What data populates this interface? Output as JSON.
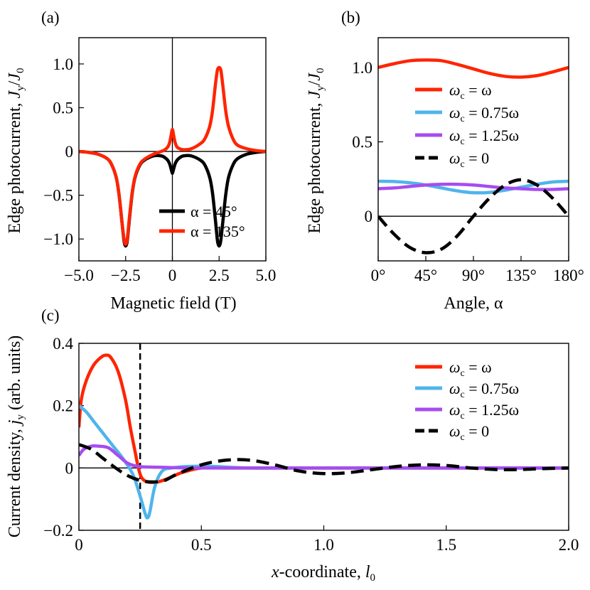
{
  "chart_data": [
    {
      "panel_label": "(a)",
      "type": "line",
      "xlabel": "Magnetic field (T)",
      "ylabel": "Edge photocurrent, Jᵧ/J₀",
      "xlim": [
        -5,
        5
      ],
      "ylim": [
        -1.25,
        1.3
      ],
      "x_ticks": [
        -5,
        -2.5,
        0,
        2.5,
        5
      ],
      "x_tick_labels": [
        "−5.0",
        "−2.5",
        "0",
        "2.5",
        "5.0"
      ],
      "y_ticks": [
        1,
        0.5,
        0,
        -0.5,
        -1
      ],
      "y_tick_labels": [
        "1.0",
        "0.5",
        "0",
        "−0.5",
        "−1.0"
      ],
      "legend": "bottom-right",
      "series": [
        {
          "name": "α = 45°",
          "color": "#000000",
          "dashed": false,
          "x": [
            -5,
            -4.5,
            -4,
            -3.5,
            -3.25,
            -3,
            -2.85,
            -2.7,
            -2.6,
            -2.55,
            -2.5,
            -2.45,
            -2.4,
            -2.3,
            -2.15,
            -2,
            -1.75,
            -1.5,
            -1,
            -0.6,
            -0.4,
            -0.25,
            -0.15,
            -0.08,
            -0.03,
            0,
            0.03,
            0.08,
            0.15,
            0.25,
            0.4,
            0.6,
            1,
            1.5,
            1.75,
            2,
            2.15,
            2.3,
            2.4,
            2.45,
            2.5,
            2.55,
            2.6,
            2.7,
            2.85,
            3,
            3.25,
            3.5,
            4,
            4.5,
            5
          ],
          "y": [
            0,
            -0.01,
            -0.03,
            -0.08,
            -0.15,
            -0.3,
            -0.5,
            -0.8,
            -1.0,
            -1.06,
            -1.08,
            -1.06,
            -1.0,
            -0.78,
            -0.48,
            -0.3,
            -0.16,
            -0.1,
            -0.05,
            -0.05,
            -0.07,
            -0.1,
            -0.14,
            -0.19,
            -0.23,
            -0.25,
            -0.23,
            -0.19,
            -0.14,
            -0.1,
            -0.07,
            -0.05,
            -0.05,
            -0.1,
            -0.16,
            -0.3,
            -0.48,
            -0.78,
            -1.0,
            -1.06,
            -1.08,
            -1.06,
            -1.0,
            -0.8,
            -0.5,
            -0.3,
            -0.15,
            -0.08,
            -0.03,
            -0.01,
            0
          ]
        },
        {
          "name": "α = 135°",
          "color": "#ff2400",
          "dashed": false,
          "x": [
            -5,
            -4.5,
            -4,
            -3.5,
            -3.25,
            -3,
            -2.85,
            -2.7,
            -2.6,
            -2.55,
            -2.5,
            -2.45,
            -2.4,
            -2.3,
            -2.15,
            -2,
            -1.75,
            -1.5,
            -1,
            -0.6,
            -0.4,
            -0.25,
            -0.15,
            -0.08,
            -0.03,
            0,
            0.03,
            0.08,
            0.15,
            0.25,
            0.4,
            0.6,
            1,
            1.5,
            1.75,
            2,
            2.15,
            2.3,
            2.4,
            2.45,
            2.5,
            2.55,
            2.6,
            2.7,
            2.85,
            3,
            3.25,
            3.5,
            4,
            4.5,
            5
          ],
          "y": [
            0,
            -0.01,
            -0.03,
            -0.08,
            -0.15,
            -0.3,
            -0.5,
            -0.8,
            -0.98,
            -1.04,
            -1.06,
            -1.04,
            -0.98,
            -0.76,
            -0.47,
            -0.29,
            -0.15,
            -0.09,
            -0.03,
            0.0,
            0.02,
            0.05,
            0.1,
            0.17,
            0.23,
            0.25,
            0.23,
            0.17,
            0.1,
            0.05,
            0.03,
            0.02,
            0.03,
            0.09,
            0.15,
            0.29,
            0.47,
            0.76,
            0.92,
            0.95,
            0.96,
            0.95,
            0.92,
            0.75,
            0.47,
            0.29,
            0.14,
            0.07,
            0.03,
            0.01,
            0
          ]
        }
      ]
    },
    {
      "panel_label": "(b)",
      "type": "line",
      "xlabel": "Angle, α",
      "ylabel": "Edge photocurrent, Jᵧ/J₀",
      "xlim": [
        0,
        180
      ],
      "ylim": [
        -0.3,
        1.2
      ],
      "x_ticks": [
        0,
        45,
        90,
        135,
        180
      ],
      "x_tick_labels": [
        "0°",
        "45°",
        "90°",
        "135°",
        "180°"
      ],
      "y_ticks": [
        1,
        0.5,
        0
      ],
      "y_tick_labels": [
        "1.0",
        "0.5",
        "0"
      ],
      "legend": "right",
      "series": [
        {
          "name_main": "ω",
          "name_sub": "c",
          "name_rest": " = ω",
          "color": "#ff2400",
          "dashed": false,
          "x": [
            0,
            15,
            30,
            45,
            60,
            75,
            90,
            105,
            120,
            135,
            150,
            165,
            180
          ],
          "y": [
            1.0,
            1.025,
            1.045,
            1.05,
            1.045,
            1.02,
            0.99,
            0.96,
            0.94,
            0.935,
            0.945,
            0.97,
            1.0
          ]
        },
        {
          "name_main": "ω",
          "name_sub": "c",
          "name_rest": " = 0.75ω",
          "color": "#50b4eb",
          "dashed": false,
          "x": [
            0,
            15,
            30,
            45,
            60,
            75,
            90,
            105,
            120,
            135,
            150,
            165,
            180
          ],
          "y": [
            0.235,
            0.233,
            0.225,
            0.21,
            0.19,
            0.17,
            0.158,
            0.16,
            0.175,
            0.195,
            0.215,
            0.23,
            0.235
          ]
        },
        {
          "name_main": "ω",
          "name_sub": "c",
          "name_rest": " = 1.25ω",
          "color": "#a64cf0",
          "dashed": false,
          "x": [
            0,
            15,
            30,
            45,
            60,
            75,
            90,
            105,
            120,
            135,
            150,
            165,
            180
          ],
          "y": [
            0.185,
            0.19,
            0.2,
            0.21,
            0.215,
            0.215,
            0.21,
            0.2,
            0.19,
            0.185,
            0.18,
            0.18,
            0.185
          ]
        },
        {
          "name_main": "ω",
          "name_sub": "c",
          "name_rest": " = 0",
          "color": "#000000",
          "dashed": true,
          "x": [
            0,
            15,
            30,
            45,
            60,
            75,
            90,
            105,
            120,
            135,
            150,
            165,
            180
          ],
          "y": [
            0,
            -0.12,
            -0.21,
            -0.245,
            -0.22,
            -0.13,
            0.0,
            0.12,
            0.21,
            0.245,
            0.21,
            0.12,
            0
          ]
        }
      ]
    },
    {
      "panel_label": "(c)",
      "type": "line",
      "xlabel": "x-coordinate, l₀",
      "ylabel": "Current density, jᵧ (arb. units)",
      "xlim": [
        0,
        2.0
      ],
      "ylim": [
        -0.2,
        0.4
      ],
      "x_ticks": [
        0,
        0.5,
        1.0,
        1.5,
        2.0
      ],
      "x_tick_labels": [
        "0",
        "0.5",
        "1.0",
        "1.5",
        "2.0"
      ],
      "y_ticks": [
        0.4,
        0.2,
        0,
        -0.2
      ],
      "y_tick_labels": [
        "0.4",
        "0.2",
        "0",
        "−0.2"
      ],
      "vline_x": 0.25,
      "legend": "top-right",
      "series": [
        {
          "name_main": "ω",
          "name_sub": "c",
          "name_rest": " = ω",
          "color": "#ff2400",
          "dashed": false,
          "x": [
            0,
            0.01,
            0.03,
            0.06,
            0.09,
            0.11,
            0.13,
            0.16,
            0.19,
            0.21,
            0.23,
            0.24,
            0.25,
            0.26,
            0.28,
            0.32,
            0.36,
            0.42,
            0.5,
            0.6,
            0.8,
            1.2,
            2.0
          ],
          "y": [
            0.13,
            0.22,
            0.28,
            0.33,
            0.355,
            0.362,
            0.355,
            0.31,
            0.22,
            0.13,
            0.05,
            0.01,
            -0.02,
            -0.035,
            -0.045,
            -0.045,
            -0.035,
            -0.015,
            0.0,
            0.0,
            0.0,
            0.0,
            0.0
          ]
        },
        {
          "name_main": "ω",
          "name_sub": "c",
          "name_rest": " = 0.75ω",
          "color": "#50b4eb",
          "dashed": false,
          "x": [
            0,
            0.03,
            0.06,
            0.1,
            0.14,
            0.18,
            0.22,
            0.25,
            0.27,
            0.28,
            0.29,
            0.31,
            0.34,
            0.38,
            0.45,
            0.55,
            0.7,
            1.0,
            2.0
          ],
          "y": [
            0.2,
            0.18,
            0.15,
            0.11,
            0.07,
            0.03,
            -0.02,
            -0.09,
            -0.145,
            -0.16,
            -0.14,
            -0.06,
            -0.01,
            0.0,
            0.005,
            0.005,
            0.0,
            0.0,
            0.0
          ]
        },
        {
          "name_main": "ω",
          "name_sub": "c",
          "name_rest": " = 1.25ω",
          "color": "#a64cf0",
          "dashed": false,
          "x": [
            0,
            0.02,
            0.05,
            0.08,
            0.12,
            0.16,
            0.2,
            0.24,
            0.28,
            0.35,
            0.45,
            0.6,
            0.8,
            1.2,
            2.0
          ],
          "y": [
            0.04,
            0.06,
            0.07,
            0.07,
            0.065,
            0.04,
            0.015,
            0.005,
            0.003,
            0.002,
            0.0,
            0.0,
            0.0,
            0.0,
            0.0
          ]
        },
        {
          "name_main": "ω",
          "name_sub": "c",
          "name_rest": " = 0",
          "color": "#000000",
          "dashed": true,
          "x": [
            0,
            0.05,
            0.1,
            0.15,
            0.2,
            0.25,
            0.3,
            0.35,
            0.4,
            0.5,
            0.6,
            0.7,
            0.8,
            0.9,
            1.0,
            1.1,
            1.2,
            1.3,
            1.4,
            1.5,
            1.6,
            1.7,
            1.8,
            1.9,
            2.0
          ],
          "y": [
            0.075,
            0.06,
            0.03,
            0.0,
            -0.025,
            -0.04,
            -0.045,
            -0.04,
            -0.02,
            0.01,
            0.025,
            0.025,
            0.01,
            -0.01,
            -0.018,
            -0.015,
            -0.005,
            0.005,
            0.01,
            0.008,
            0.0,
            -0.005,
            -0.005,
            -0.002,
            0.0
          ]
        }
      ]
    }
  ]
}
